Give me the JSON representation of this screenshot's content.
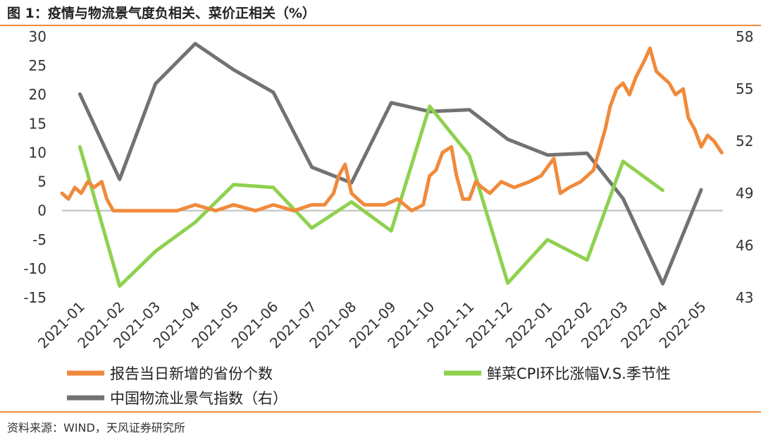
{
  "title": "图 1：疫情与物流景气度负相关、菜价正相关（%）",
  "source": "资料来源：WIND，天风证券研究所",
  "colors": {
    "cases": "#f08a3c",
    "cpi": "#8fd14f",
    "pmi": "#727272",
    "accent": "#f08a3c"
  },
  "chart_data": {
    "type": "line",
    "x_labels": [
      "2021-01",
      "2021-02",
      "2021-03",
      "2021-04",
      "2021-05",
      "2021-06",
      "2021-07",
      "2021-08",
      "2021-09",
      "2021-10",
      "2021-11",
      "2021-12",
      "2022-01",
      "2022-02",
      "2022-03",
      "2022-04",
      "2022-05"
    ],
    "y_left": {
      "ticks": [
        30,
        25,
        20,
        15,
        10,
        5,
        0,
        -5,
        -10,
        -15
      ],
      "ylim": [
        -15,
        30
      ]
    },
    "y_right": {
      "ticks": [
        58,
        55,
        52,
        49,
        46,
        43
      ],
      "ylim": [
        43,
        58
      ]
    },
    "legend": {
      "placement": "bottom"
    },
    "series": [
      {
        "name": "报告当日新增的省份个数",
        "axis": "left",
        "color": "#f08a3c",
        "x": [
          "2021-01-01",
          "2021-01-06",
          "2021-01-11",
          "2021-01-16",
          "2021-01-21",
          "2021-01-26",
          "2021-02-01",
          "2021-02-05",
          "2021-02-10",
          "2021-02-20",
          "2021-03-01",
          "2021-03-15",
          "2021-04-01",
          "2021-04-15",
          "2021-05-01",
          "2021-05-15",
          "2021-06-01",
          "2021-06-15",
          "2021-07-01",
          "2021-07-15",
          "2021-07-25",
          "2021-08-01",
          "2021-08-05",
          "2021-08-10",
          "2021-08-15",
          "2021-08-20",
          "2021-08-25",
          "2021-09-01",
          "2021-09-10",
          "2021-09-20",
          "2021-10-01",
          "2021-10-10",
          "2021-10-15",
          "2021-10-20",
          "2021-10-25",
          "2021-11-01",
          "2021-11-05",
          "2021-11-10",
          "2021-11-15",
          "2021-11-20",
          "2021-11-25",
          "2021-12-01",
          "2021-12-10",
          "2021-12-20",
          "2022-01-01",
          "2022-01-10",
          "2022-01-20",
          "2022-01-25",
          "2022-02-01",
          "2022-02-10",
          "2022-02-20",
          "2022-03-01",
          "2022-03-05",
          "2022-03-10",
          "2022-03-15",
          "2022-03-20",
          "2022-03-25",
          "2022-04-01",
          "2022-04-05",
          "2022-04-10",
          "2022-04-15",
          "2022-04-20",
          "2022-04-25",
          "2022-05-01",
          "2022-05-05",
          "2022-05-10",
          "2022-05-15",
          "2022-05-20",
          "2022-05-25",
          "2022-05-31"
        ],
        "values": [
          3,
          2,
          4,
          3,
          5,
          4,
          5,
          2,
          0,
          0,
          0,
          0,
          0,
          1,
          0,
          1,
          0,
          1,
          0,
          1,
          1,
          3,
          6,
          8,
          3,
          2,
          1,
          1,
          1,
          2,
          0,
          1,
          6,
          7,
          10,
          11,
          6,
          2,
          2,
          5,
          4,
          3,
          5,
          4,
          5,
          6,
          9,
          3,
          4,
          5,
          7,
          14,
          18,
          21,
          22,
          20,
          23,
          26,
          28,
          24,
          23,
          22,
          20,
          21,
          16,
          14,
          11,
          13,
          12,
          10
        ]
      },
      {
        "name": "鲜菜CPI环比涨幅V.S.季节性",
        "axis": "left",
        "color": "#8fd14f",
        "x": [
          "2021-01-15",
          "2021-02-15",
          "2021-03-15",
          "2021-04-15",
          "2021-05-15",
          "2021-06-15",
          "2021-07-15",
          "2021-08-15",
          "2021-09-15",
          "2021-10-15",
          "2021-11-15",
          "2021-12-15",
          "2022-01-15",
          "2022-02-15",
          "2022-03-15",
          "2022-04-15"
        ],
        "values": [
          11,
          -13,
          -7,
          -2,
          4.5,
          4,
          -3,
          1.5,
          -3.5,
          18,
          9.5,
          -12.5,
          -5,
          -8.5,
          8.5,
          3.5
        ]
      },
      {
        "name": "中国物流业景气指数（右）",
        "axis": "right",
        "color": "#727272",
        "x": [
          "2021-01-15",
          "2021-02-15",
          "2021-03-15",
          "2021-04-15",
          "2021-05-15",
          "2021-06-15",
          "2021-07-15",
          "2021-08-15",
          "2021-09-15",
          "2021-10-15",
          "2021-11-15",
          "2021-12-15",
          "2022-01-15",
          "2022-02-15",
          "2022-03-15",
          "2022-04-15",
          "2022-05-15"
        ],
        "values": [
          54.7,
          49.8,
          55.3,
          57.6,
          56.1,
          54.8,
          50.5,
          49.6,
          54.2,
          53.7,
          53.8,
          52.1,
          51.2,
          51.3,
          48.7,
          43.8,
          49.2
        ]
      }
    ]
  }
}
